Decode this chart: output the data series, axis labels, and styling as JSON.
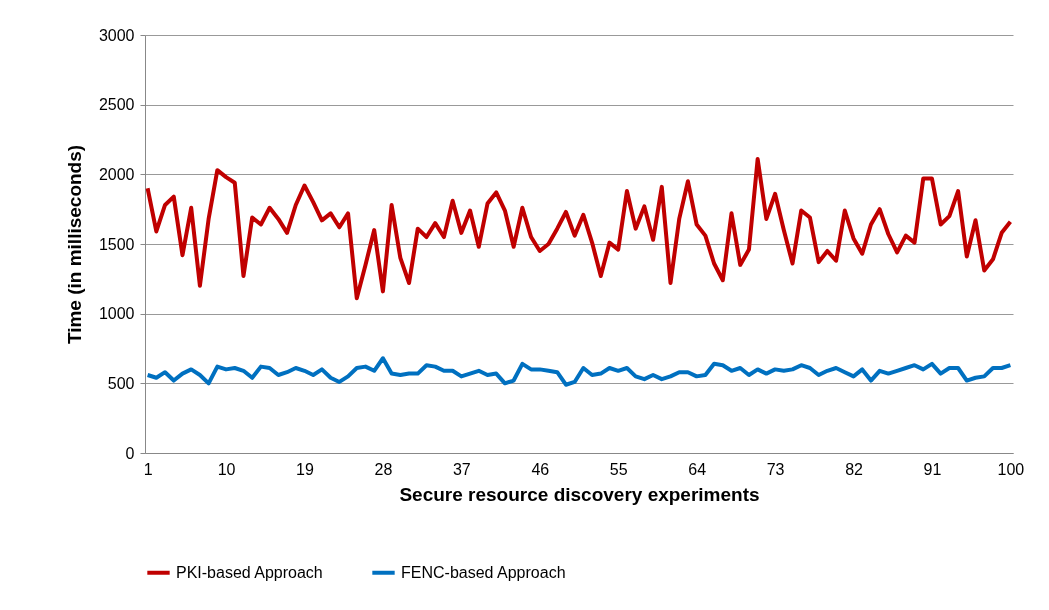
{
  "chart_data": {
    "type": "line",
    "xlabel": "Secure resource discovery experiments",
    "ylabel": "Time (in milliseconds)",
    "categories": [
      "1",
      null,
      null,
      null,
      null,
      null,
      null,
      null,
      null,
      "10",
      null,
      null,
      null,
      null,
      null,
      null,
      null,
      null,
      "19",
      null,
      null,
      null,
      null,
      null,
      null,
      null,
      null,
      "28",
      null,
      null,
      null,
      null,
      null,
      null,
      null,
      null,
      "37",
      null,
      null,
      null,
      null,
      null,
      null,
      null,
      null,
      "46",
      null,
      null,
      null,
      null,
      null,
      null,
      null,
      null,
      "55",
      null,
      null,
      null,
      null,
      null,
      null,
      null,
      null,
      "64",
      null,
      null,
      null,
      null,
      null,
      null,
      null,
      null,
      "73",
      null,
      null,
      null,
      null,
      null,
      null,
      null,
      null,
      "82",
      null,
      null,
      null,
      null,
      null,
      null,
      null,
      null,
      "91",
      null,
      null,
      null,
      null,
      null,
      null,
      null,
      null,
      "100"
    ],
    "ylim": [
      0,
      3000
    ],
    "yticks": [
      0,
      500,
      1000,
      1500,
      2000,
      2500,
      3000
    ],
    "grid": "y",
    "legend": "bottom",
    "line_style": "solid",
    "series": [
      {
        "name": "PKI-based Approach",
        "color": "#c00000",
        "values": [
          1900,
          1590,
          1780,
          1840,
          1420,
          1760,
          1200,
          1680,
          2030,
          1980,
          1940,
          1270,
          1690,
          1640,
          1760,
          1680,
          1580,
          1780,
          1920,
          1800,
          1670,
          1720,
          1620,
          1720,
          1110,
          1350,
          1600,
          1160,
          1780,
          1400,
          1220,
          1610,
          1550,
          1650,
          1550,
          1810,
          1580,
          1740,
          1480,
          1790,
          1870,
          1740,
          1480,
          1760,
          1550,
          1450,
          1500,
          1610,
          1730,
          1560,
          1710,
          1510,
          1270,
          1510,
          1460,
          1880,
          1610,
          1770,
          1530,
          1910,
          1220,
          1680,
          1950,
          1640,
          1560,
          1360,
          1240,
          1720,
          1350,
          1460,
          2110,
          1680,
          1860,
          1600,
          1360,
          1740,
          1690,
          1370,
          1450,
          1380,
          1740,
          1540,
          1430,
          1640,
          1750,
          1570,
          1440,
          1560,
          1510,
          1970,
          1970,
          1640,
          1700,
          1880,
          1410,
          1670,
          1310,
          1390,
          1580,
          1660
        ]
      },
      {
        "name": "FENC-based Approach",
        "color": "#0070c0",
        "values": [
          560,
          540,
          580,
          520,
          570,
          600,
          560,
          500,
          620,
          600,
          610,
          590,
          540,
          620,
          610,
          560,
          580,
          610,
          590,
          560,
          600,
          540,
          510,
          550,
          610,
          620,
          590,
          680,
          570,
          560,
          570,
          570,
          630,
          620,
          590,
          590,
          550,
          570,
          590,
          560,
          570,
          500,
          520,
          640,
          600,
          600,
          590,
          580,
          490,
          510,
          610,
          560,
          570,
          610,
          590,
          610,
          550,
          530,
          560,
          530,
          550,
          580,
          580,
          550,
          560,
          640,
          630,
          590,
          610,
          560,
          600,
          570,
          600,
          590,
          600,
          630,
          610,
          560,
          590,
          610,
          580,
          550,
          600,
          520,
          590,
          570,
          590,
          610,
          630,
          600,
          640,
          570,
          610,
          610,
          520,
          540,
          550,
          610,
          610,
          630
        ]
      }
    ]
  }
}
